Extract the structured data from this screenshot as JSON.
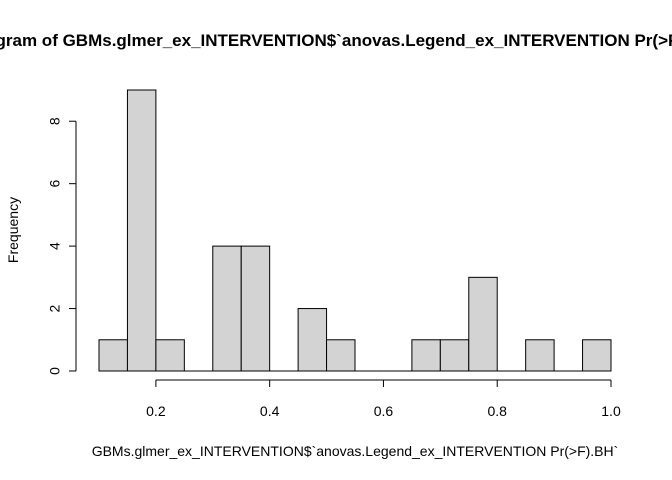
{
  "chart_data": {
    "type": "bar",
    "title": "Histogram of GBMs.glmer_ex_INTERVENTION$`anovas.Legend_ex_INTERVENTION Pr(>F).BH`",
    "xlabel": "GBMs.glmer_ex_INTERVENTION$`anovas.Legend_ex_INTERVENTION Pr(>F).BH`",
    "ylabel": "Frequency",
    "bin_edges": [
      0.1,
      0.15,
      0.2,
      0.25,
      0.3,
      0.35,
      0.4,
      0.45,
      0.5,
      0.55,
      0.6,
      0.65,
      0.7,
      0.75,
      0.8,
      0.85,
      0.9,
      0.95,
      1.0
    ],
    "values": [
      1,
      9,
      1,
      0,
      4,
      4,
      0,
      2,
      1,
      0,
      0,
      1,
      1,
      3,
      0,
      1,
      0,
      1
    ],
    "xlim": [
      0.1,
      1.0
    ],
    "ylim": [
      0,
      9
    ],
    "x_ticks": [
      "0.2",
      "0.4",
      "0.6",
      "0.8",
      "1.0"
    ],
    "y_ticks": [
      "0",
      "2",
      "4",
      "6",
      "8"
    ],
    "grid": false
  }
}
